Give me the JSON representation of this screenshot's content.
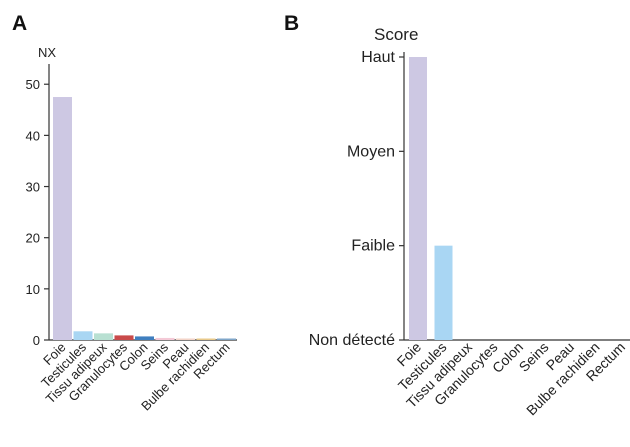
{
  "chart_data": [
    {
      "panel": "A",
      "type": "bar",
      "ylabel": "NX",
      "ylim": [
        0,
        52
      ],
      "yticks": [
        0,
        10,
        20,
        30,
        40,
        50
      ],
      "categories": [
        "Foie",
        "Testicules",
        "Tissu adipeux",
        "Granulocytes",
        "Colon",
        "Seins",
        "Peau",
        "Bulbe rachidien",
        "Rectum"
      ],
      "values": [
        47.5,
        1.7,
        1.3,
        0.9,
        0.7,
        0.4,
        0.3,
        0.25,
        0.2
      ],
      "colors": [
        "#cdc8e3",
        "#a9d6f3",
        "#b8e0d2",
        "#c94a4a",
        "#3f7fbf",
        "#f4c9d6",
        "#f3d4c8",
        "#e8c98a",
        "#7fa6c9"
      ],
      "grid": false
    },
    {
      "panel": "B",
      "type": "bar",
      "ylabel": "Score",
      "ylim": [
        0,
        3
      ],
      "yticks": [
        0,
        1,
        2,
        3
      ],
      "yticklabels": [
        "Non détecté",
        "Faible",
        "Moyen",
        "Haut"
      ],
      "categories": [
        "Foie",
        "Testicules",
        "Tissu adipeux",
        "Granulocytes",
        "Colon",
        "Seins",
        "Peau",
        "Bulbe rachidien",
        "Rectum"
      ],
      "values": [
        3,
        1,
        0,
        0,
        0,
        0,
        0,
        0,
        0
      ],
      "colors": [
        "#cdc8e3",
        "#a9d6f3",
        "#b8e0d2",
        "#c94a4a",
        "#3f7fbf",
        "#f4c9d6",
        "#f3d4c8",
        "#e8c98a",
        "#7fa6c9"
      ],
      "grid": false
    }
  ]
}
